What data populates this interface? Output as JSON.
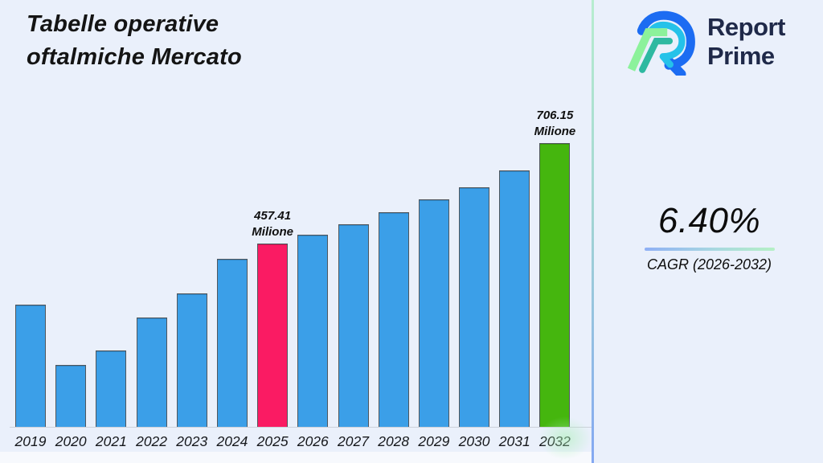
{
  "title": {
    "line1": "Tabelle operative",
    "line2": "oftalmiche Mercato"
  },
  "brand": {
    "line1": "Report",
    "line2": "Prime",
    "text_color": "#1f2949",
    "mark_colors": {
      "blue": "#1c6cf2",
      "cyan": "#25c2e9",
      "light_green": "#8cf29b",
      "teal": "#2eb9a1"
    }
  },
  "stats": {
    "value": "6.40%",
    "label": "CAGR (2026-2032)"
  },
  "chart_data": {
    "type": "bar",
    "title": "Tabelle operative oftalmiche Mercato",
    "unit": "Milione",
    "xlabel": "",
    "ylabel": "",
    "ylim": [
      0,
      740
    ],
    "grid": false,
    "legend": false,
    "categories": [
      "2019",
      "2020",
      "2021",
      "2022",
      "2023",
      "2024",
      "2025",
      "2026",
      "2027",
      "2028",
      "2029",
      "2030",
      "2031",
      "2032"
    ],
    "values": [
      305,
      156,
      192,
      274,
      334,
      418,
      457.41,
      478,
      505,
      535,
      566,
      597,
      638,
      706.15
    ],
    "values_note": "only 2025 and 2032 are labeled in the image; other values estimated from bar heights",
    "data_labels": [
      {
        "category": "2025",
        "lines": [
          "457.41",
          "Milione"
        ]
      },
      {
        "category": "2032",
        "lines": [
          "706.15",
          "Milione"
        ]
      }
    ],
    "bar_colors": {
      "default": "#3b9fe8",
      "2025": "#fa1b63",
      "2032": "#45b60e"
    },
    "background": "#eaf0fb"
  }
}
